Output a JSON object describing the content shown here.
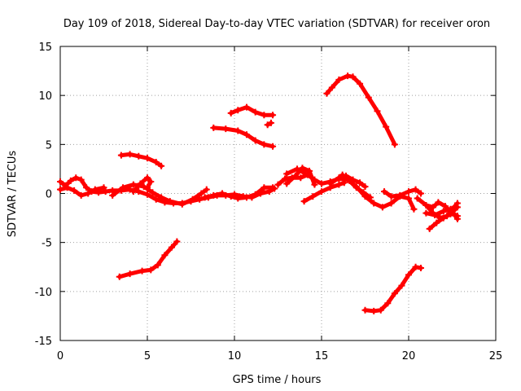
{
  "chart_data": {
    "type": "scatter",
    "title": "Day 109 of 2018, Sidereal Day-to-day VTEC variation (SDTVAR) for receiver oron",
    "xlabel": "GPS time / hours",
    "ylabel": "SDTVAR / TECUs",
    "xlim": [
      0,
      25
    ],
    "ylim": [
      -15,
      15
    ],
    "xticks": [
      "0",
      "5",
      "10",
      "15",
      "20",
      "25"
    ],
    "yticks": [
      "15",
      "10",
      "5",
      "0",
      "-5",
      "-10",
      "-15"
    ],
    "grid": true,
    "marker": "+",
    "color": "#ff0000",
    "series": [
      {
        "name": "main-a",
        "points": [
          [
            0.0,
            1.2
          ],
          [
            0.3,
            0.8
          ],
          [
            0.6,
            1.3
          ],
          [
            0.9,
            1.6
          ],
          [
            1.2,
            1.4
          ],
          [
            1.5,
            0.6
          ],
          [
            1.8,
            0.2
          ],
          [
            2.2,
            0.1
          ],
          [
            2.6,
            0.2
          ],
          [
            3.0,
            0.3
          ],
          [
            3.5,
            0.3
          ],
          [
            4.0,
            0.4
          ],
          [
            4.5,
            0.2
          ],
          [
            5.0,
            -0.1
          ],
          [
            5.5,
            -0.6
          ],
          [
            6.0,
            -0.9
          ],
          [
            6.5,
            -1.0
          ],
          [
            7.0,
            -1.0
          ],
          [
            7.5,
            -0.8
          ],
          [
            8.0,
            -0.6
          ],
          [
            8.5,
            -0.4
          ],
          [
            9.0,
            -0.2
          ],
          [
            9.5,
            -0.2
          ],
          [
            10.0,
            -0.1
          ],
          [
            10.5,
            -0.3
          ],
          [
            11.0,
            -0.4
          ],
          [
            11.5,
            0.0
          ],
          [
            12.0,
            0.2
          ],
          [
            12.3,
            0.5
          ]
        ]
      },
      {
        "name": "main-b",
        "points": [
          [
            0.0,
            0.4
          ],
          [
            0.4,
            0.6
          ],
          [
            0.8,
            0.3
          ],
          [
            1.2,
            -0.2
          ],
          [
            1.6,
            0.0
          ],
          [
            2.0,
            0.4
          ],
          [
            2.5,
            0.6
          ]
        ]
      },
      {
        "name": "main-c",
        "points": [
          [
            3.0,
            -0.2
          ],
          [
            3.6,
            0.6
          ],
          [
            4.2,
            0.9
          ],
          [
            4.8,
            0.7
          ],
          [
            5.3,
            0.1
          ],
          [
            5.8,
            -0.4
          ],
          [
            6.3,
            -0.8
          ],
          [
            7.0,
            -1.1
          ],
          [
            7.6,
            -0.6
          ],
          [
            8.1,
            0.0
          ],
          [
            8.4,
            0.4
          ]
        ]
      },
      {
        "name": "main-d",
        "points": [
          [
            4.2,
            0.2
          ],
          [
            4.6,
            1.0
          ],
          [
            5.0,
            1.6
          ],
          [
            5.2,
            1.2
          ],
          [
            5.0,
            0.6
          ]
        ]
      },
      {
        "name": "main-e",
        "points": [
          [
            8.3,
            -0.4
          ],
          [
            8.8,
            -0.2
          ],
          [
            9.3,
            0.0
          ],
          [
            9.8,
            -0.3
          ],
          [
            10.2,
            -0.5
          ],
          [
            10.7,
            -0.4
          ],
          [
            11.2,
            -0.1
          ],
          [
            11.7,
            0.6
          ],
          [
            12.2,
            0.6
          ]
        ]
      },
      {
        "name": "main-f",
        "points": [
          [
            12.5,
            0.9
          ],
          [
            12.9,
            1.5
          ],
          [
            13.3,
            1.6
          ],
          [
            13.8,
            1.6
          ],
          [
            14.2,
            1.9
          ],
          [
            14.6,
            1.4
          ],
          [
            15.0,
            1.0
          ],
          [
            15.5,
            1.2
          ],
          [
            16.0,
            1.5
          ],
          [
            16.5,
            1.4
          ],
          [
            17.0,
            0.7
          ],
          [
            17.5,
            -0.3
          ],
          [
            18.0,
            -1.0
          ],
          [
            18.5,
            -1.4
          ],
          [
            19.0,
            -1.0
          ],
          [
            19.5,
            -0.3
          ],
          [
            20.0,
            -0.5
          ],
          [
            20.3,
            -1.6
          ]
        ]
      },
      {
        "name": "main-g",
        "points": [
          [
            13.0,
            1.0
          ],
          [
            13.5,
            1.8
          ],
          [
            13.9,
            2.6
          ],
          [
            14.3,
            2.3
          ],
          [
            14.6,
            0.9
          ]
        ]
      },
      {
        "name": "main-h",
        "points": [
          [
            13.0,
            2.0
          ],
          [
            13.6,
            2.5
          ],
          [
            14.1,
            2.0
          ]
        ]
      },
      {
        "name": "main-i",
        "points": [
          [
            14.0,
            -0.8
          ],
          [
            14.5,
            -0.3
          ],
          [
            15.0,
            0.2
          ],
          [
            15.5,
            0.6
          ],
          [
            16.0,
            0.9
          ],
          [
            16.3,
            1.1
          ]
        ]
      },
      {
        "name": "main-j",
        "points": [
          [
            15.5,
            1.0
          ],
          [
            16.0,
            1.6
          ],
          [
            16.4,
            1.8
          ],
          [
            16.8,
            1.4
          ],
          [
            17.2,
            1.1
          ],
          [
            17.5,
            0.7
          ]
        ]
      },
      {
        "name": "main-k",
        "points": [
          [
            16.2,
            1.9
          ],
          [
            16.6,
            1.3
          ],
          [
            17.0,
            0.6
          ],
          [
            17.4,
            0.1
          ],
          [
            17.8,
            -0.4
          ]
        ]
      },
      {
        "name": "main-l",
        "points": [
          [
            18.6,
            0.2
          ],
          [
            19.0,
            -0.3
          ],
          [
            19.5,
            -0.2
          ],
          [
            20.0,
            0.2
          ],
          [
            20.4,
            0.4
          ],
          [
            20.7,
            0.0
          ]
        ]
      },
      {
        "name": "main-m",
        "points": [
          [
            20.5,
            -0.5
          ],
          [
            21.0,
            -1.2
          ],
          [
            21.4,
            -1.4
          ],
          [
            21.7,
            -0.9
          ],
          [
            22.1,
            -1.3
          ],
          [
            22.5,
            -2.0
          ],
          [
            22.8,
            -2.3
          ]
        ]
      },
      {
        "name": "main-n",
        "points": [
          [
            21.0,
            -1.2
          ],
          [
            21.4,
            -2.0
          ],
          [
            21.8,
            -2.5
          ],
          [
            22.2,
            -2.3
          ],
          [
            22.5,
            -1.6
          ],
          [
            22.8,
            -1.0
          ]
        ]
      },
      {
        "name": "main-o",
        "points": [
          [
            21.2,
            -3.6
          ],
          [
            21.6,
            -3.0
          ],
          [
            22.0,
            -2.5
          ],
          [
            22.4,
            -2.1
          ],
          [
            22.8,
            -1.4
          ]
        ]
      },
      {
        "name": "main-p",
        "points": [
          [
            21.0,
            -2.0
          ],
          [
            21.5,
            -2.2
          ],
          [
            22.0,
            -1.8
          ],
          [
            22.4,
            -1.6
          ],
          [
            22.8,
            -2.6
          ]
        ]
      },
      {
        "name": "upper-4",
        "points": [
          [
            3.5,
            3.9
          ],
          [
            4.0,
            4.0
          ],
          [
            4.5,
            3.8
          ],
          [
            5.0,
            3.6
          ],
          [
            5.5,
            3.2
          ],
          [
            5.8,
            2.8
          ]
        ]
      },
      {
        "name": "upper-6a",
        "points": [
          [
            8.8,
            6.7
          ],
          [
            9.5,
            6.6
          ],
          [
            10.2,
            6.4
          ],
          [
            10.7,
            6.0
          ],
          [
            11.2,
            5.4
          ],
          [
            11.7,
            5.0
          ],
          [
            12.2,
            4.8
          ]
        ]
      },
      {
        "name": "upper-8",
        "points": [
          [
            9.8,
            8.2
          ],
          [
            10.2,
            8.5
          ],
          [
            10.7,
            8.8
          ],
          [
            11.2,
            8.3
          ],
          [
            11.7,
            8.0
          ],
          [
            12.2,
            8.0
          ]
        ]
      },
      {
        "name": "upper-7",
        "points": [
          [
            11.9,
            7.0
          ],
          [
            12.1,
            7.2
          ]
        ]
      },
      {
        "name": "upper-12",
        "points": [
          [
            15.3,
            10.2
          ],
          [
            15.6,
            10.8
          ],
          [
            16.0,
            11.6
          ],
          [
            16.5,
            12.0
          ],
          [
            16.8,
            11.9
          ],
          [
            17.2,
            11.2
          ],
          [
            17.7,
            9.8
          ],
          [
            18.2,
            8.4
          ],
          [
            18.7,
            6.8
          ],
          [
            19.2,
            5.0
          ]
        ]
      },
      {
        "name": "lower-left",
        "points": [
          [
            3.4,
            -8.5
          ],
          [
            4.0,
            -8.2
          ],
          [
            4.7,
            -7.9
          ],
          [
            5.2,
            -7.8
          ],
          [
            5.6,
            -7.3
          ],
          [
            6.0,
            -6.3
          ],
          [
            6.4,
            -5.5
          ],
          [
            6.7,
            -4.9
          ]
        ]
      },
      {
        "name": "lower-right",
        "points": [
          [
            17.5,
            -11.9
          ],
          [
            18.0,
            -12.0
          ],
          [
            18.4,
            -11.9
          ],
          [
            18.8,
            -11.2
          ],
          [
            19.2,
            -10.2
          ],
          [
            19.6,
            -9.4
          ],
          [
            20.0,
            -8.3
          ],
          [
            20.4,
            -7.5
          ],
          [
            20.7,
            -7.6
          ]
        ]
      }
    ]
  }
}
